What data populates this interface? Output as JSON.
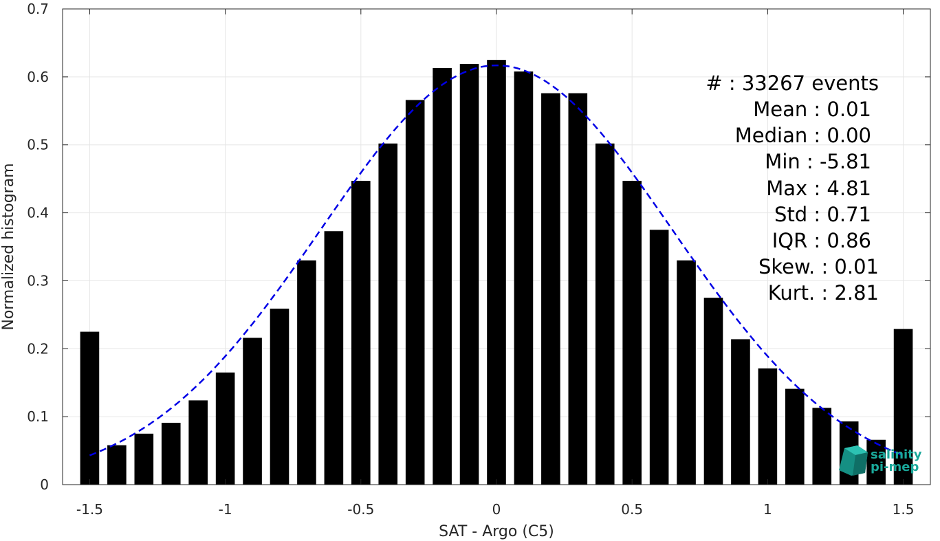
{
  "chart_data": {
    "type": "bar",
    "xlabel": "SAT - Argo (C5)",
    "ylabel": "Normalized histogram",
    "xlim": [
      -1.6,
      1.6
    ],
    "ylim": [
      0,
      0.7
    ],
    "x_ticks": [
      -1.5,
      -1,
      -0.5,
      0,
      0.5,
      1,
      1.5
    ],
    "x_tick_labels": [
      "-1.5",
      "-1",
      "-0.5",
      "0",
      "0.5",
      "1",
      "1.5"
    ],
    "y_ticks": [
      0,
      0.1,
      0.2,
      0.3,
      0.4,
      0.5,
      0.6,
      0.7
    ],
    "y_tick_labels": [
      "0",
      "0.1",
      "0.2",
      "0.3",
      "0.4",
      "0.5",
      "0.6",
      "0.7"
    ],
    "grid": true,
    "bar_color": "#000000",
    "bar_width": 0.07,
    "bars": {
      "x": [
        -1.5,
        -1.4,
        -1.3,
        -1.2,
        -1.1,
        -1.0,
        -0.9,
        -0.8,
        -0.7,
        -0.6,
        -0.5,
        -0.4,
        -0.3,
        -0.2,
        -0.1,
        0.0,
        0.1,
        0.2,
        0.3,
        0.4,
        0.5,
        0.6,
        0.7,
        0.8,
        0.9,
        1.0,
        1.1,
        1.2,
        1.3,
        1.4,
        1.5
      ],
      "values": [
        0.225,
        0.058,
        0.075,
        0.091,
        0.124,
        0.165,
        0.216,
        0.259,
        0.33,
        0.373,
        0.447,
        0.502,
        0.566,
        0.613,
        0.619,
        0.625,
        0.608,
        0.576,
        0.576,
        0.502,
        0.447,
        0.375,
        0.33,
        0.275,
        0.214,
        0.171,
        0.141,
        0.113,
        0.093,
        0.066,
        0.229
      ]
    },
    "fit_curve": {
      "type": "gaussian",
      "color": "#0000e6",
      "style": "dashed",
      "mean": 0.0,
      "std": 0.65,
      "peak": 0.617,
      "x_range": [
        -1.5,
        1.5
      ]
    }
  },
  "stats": [
    {
      "label": "#  : 33267 events"
    },
    {
      "label": "Mean : 0.01"
    },
    {
      "label": "Median : 0.00"
    },
    {
      "label": "Min : -5.81"
    },
    {
      "label": "Max : 4.81"
    },
    {
      "label": "Std : 0.71"
    },
    {
      "label": "IQR : 0.86"
    },
    {
      "label": "Skew. : 0.01"
    },
    {
      "label": "Kurt. : 2.81"
    }
  ],
  "logo": {
    "line1": "salinity",
    "line2": "pi-mep",
    "color": "#1aa89a"
  }
}
